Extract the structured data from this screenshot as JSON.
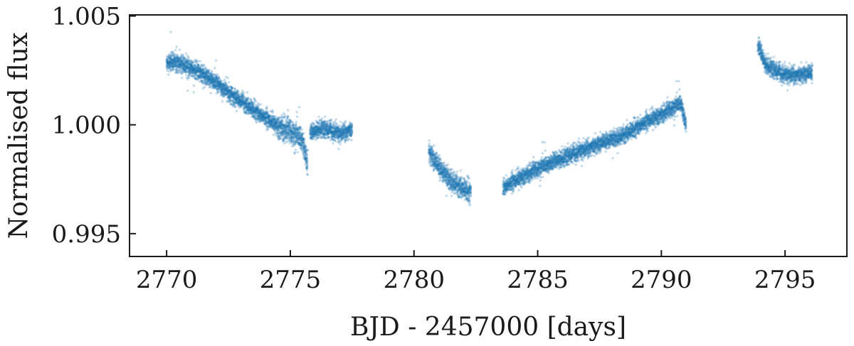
{
  "chart_data": {
    "type": "scatter",
    "title": "",
    "xlabel": "BJD - 2457000 [days]",
    "ylabel": "Normalised flux",
    "xlim": [
      2768.5,
      2797.5
    ],
    "ylim": [
      0.99395,
      1.00505
    ],
    "x_ticks": [
      2770,
      2775,
      2780,
      2785,
      2790,
      2795
    ],
    "x_tick_labels": [
      "2770",
      "2775",
      "2780",
      "2785",
      "2790",
      "2795"
    ],
    "y_ticks": [
      0.995,
      1.0,
      1.005
    ],
    "y_tick_labels": [
      "0.995",
      "1.000",
      "1.005"
    ],
    "grid": false,
    "legend": "none",
    "point_color": "#1f77b4",
    "point_alpha": 0.25,
    "series": [
      {
        "segment": 1,
        "x": [
          2770.0,
          2770.5,
          2771.0,
          2771.5,
          2772.0,
          2772.5,
          2773.0,
          2773.5,
          2774.0,
          2774.5,
          2775.0,
          2775.5,
          2775.7
        ],
        "y": [
          1.0029,
          1.00285,
          1.0026,
          1.0023,
          1.0019,
          1.0015,
          1.0011,
          1.0007,
          1.0003,
          0.99995,
          0.9997,
          0.9993,
          0.9982
        ]
      },
      {
        "segment": 2,
        "x": [
          2775.8,
          2776.2,
          2776.6,
          2777.0,
          2777.5
        ],
        "y": [
          0.9996,
          0.99985,
          0.99975,
          0.9996,
          0.9998
        ]
      },
      {
        "segment": 3,
        "x": [
          2780.6,
          2780.9,
          2781.2,
          2781.5,
          2781.8,
          2782.1,
          2782.3
        ],
        "y": [
          0.9988,
          0.99825,
          0.9978,
          0.99745,
          0.9972,
          0.997,
          0.9969
        ]
      },
      {
        "segment": 4,
        "x": [
          2783.6,
          2784.5,
          2785.5,
          2786.5,
          2787.5,
          2788.5,
          2789.5,
          2790.2,
          2790.8,
          2791.0
        ],
        "y": [
          0.9971,
          0.9977,
          0.99825,
          0.9987,
          0.99915,
          0.99955,
          1.0002,
          1.0006,
          1.001,
          0.99995
        ]
      },
      {
        "segment": 5,
        "x": [
          2793.9,
          2794.2,
          2794.6,
          2795.0,
          2795.5,
          2796.1
        ],
        "y": [
          1.0037,
          1.0028,
          1.0025,
          1.0023,
          1.0023,
          1.0024
        ]
      }
    ]
  }
}
